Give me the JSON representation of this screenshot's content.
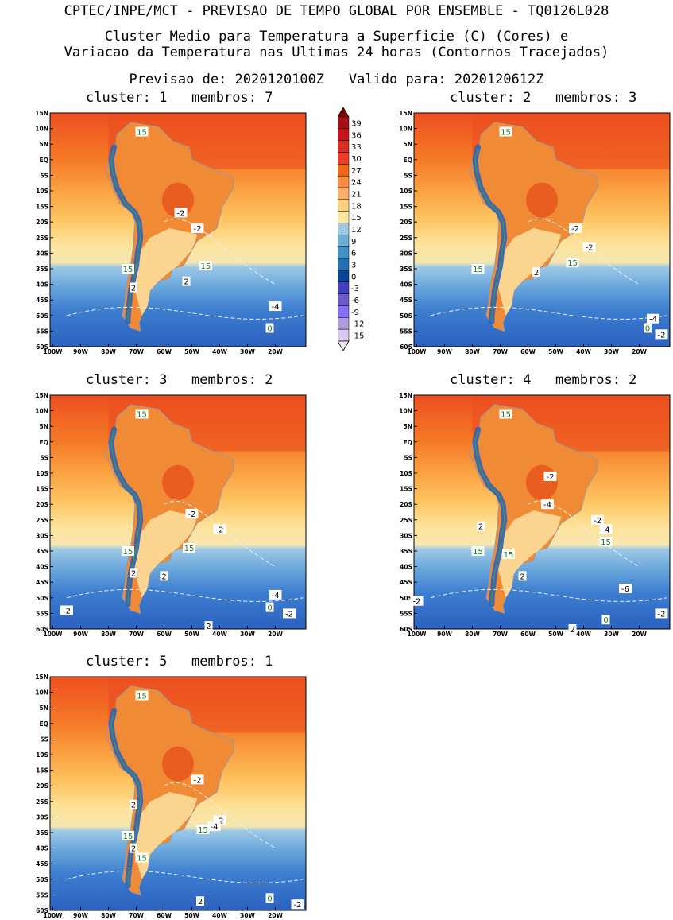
{
  "header": {
    "line1": "CPTEC/INPE/MCT - PREVISAO DE TEMPO GLOBAL POR ENSEMBLE - TQ0126L028",
    "line2": "Cluster Medio para Temperatura a Superficie (C) (Cores) e",
    "line3": "Variacao da Temperatura nas Ultimas 24 horas (Contornos Tracejados)",
    "line4": "Previsao de: 2020120100Z   Valido para: 2020120612Z"
  },
  "axes": {
    "lat_labels": [
      "15N",
      "10N",
      "5N",
      "EQ",
      "5S",
      "10S",
      "15S",
      "20S",
      "25S",
      "30S",
      "35S",
      "40S",
      "45S",
      "50S",
      "55S",
      "60S"
    ],
    "lon_labels": [
      "100W",
      "90W",
      "80W",
      "70W",
      "60W",
      "50W",
      "40W",
      "30W",
      "20W"
    ]
  },
  "colorbar": {
    "labels": [
      "39",
      "36",
      "33",
      "30",
      "27",
      "24",
      "21",
      "18",
      "15",
      "12",
      "9",
      "6",
      "3",
      "0",
      "-3",
      "-6",
      "-9",
      "-12",
      "-15"
    ],
    "colors": [
      "#a50f15",
      "#c4161c",
      "#de2d26",
      "#ef3b2c",
      "#f16913",
      "#fd8d3c",
      "#fdae6b",
      "#fdd27a",
      "#fee8a0",
      "#9ecae1",
      "#6baed6",
      "#4292c6",
      "#2171b5",
      "#084594",
      "#4040c0",
      "#6a5acd",
      "#8470ff",
      "#b19cd9",
      "#d8c8f0"
    ]
  },
  "panels": [
    {
      "title": "cluster: 1   membros: 7",
      "labels": [
        {
          "t": "15",
          "c": "g",
          "x": -68,
          "y": 9
        },
        {
          "t": "-2",
          "c": "w",
          "x": -54,
          "y": -17
        },
        {
          "t": "-2",
          "c": "w",
          "x": -48,
          "y": -22
        },
        {
          "t": "15",
          "c": "g",
          "x": -73,
          "y": -35
        },
        {
          "t": "15",
          "c": "g",
          "x": -45,
          "y": -34
        },
        {
          "t": "2",
          "c": "w",
          "x": -52,
          "y": -39
        },
        {
          "t": "2",
          "c": "w",
          "x": -71,
          "y": -41
        },
        {
          "t": "-4",
          "c": "w",
          "x": -20,
          "y": -47
        },
        {
          "t": "0",
          "c": "g",
          "x": -22,
          "y": -54
        }
      ]
    },
    {
      "title": "cluster: 2   membros: 3",
      "labels": [
        {
          "t": "15",
          "c": "g",
          "x": -68,
          "y": 9
        },
        {
          "t": "-2",
          "c": "w",
          "x": -43,
          "y": -22
        },
        {
          "t": "-2",
          "c": "w",
          "x": -38,
          "y": -28
        },
        {
          "t": "15",
          "c": "g",
          "x": -44,
          "y": -33
        },
        {
          "t": "15",
          "c": "g",
          "x": -78,
          "y": -35
        },
        {
          "t": "2",
          "c": "w",
          "x": -57,
          "y": -36
        },
        {
          "t": "-4",
          "c": "w",
          "x": -15,
          "y": -51
        },
        {
          "t": "0",
          "c": "g",
          "x": -17,
          "y": -54
        },
        {
          "t": "-2",
          "c": "w",
          "x": -12,
          "y": -56
        }
      ]
    },
    {
      "title": "cluster: 3   membros: 2",
      "labels": [
        {
          "t": "15",
          "c": "g",
          "x": -68,
          "y": 9
        },
        {
          "t": "-2",
          "c": "w",
          "x": -50,
          "y": -23
        },
        {
          "t": "-2",
          "c": "w",
          "x": -40,
          "y": -28
        },
        {
          "t": "15",
          "c": "g",
          "x": -51,
          "y": -34
        },
        {
          "t": "15",
          "c": "g",
          "x": -73,
          "y": -35
        },
        {
          "t": "2",
          "c": "w",
          "x": -71,
          "y": -42
        },
        {
          "t": "2",
          "c": "w",
          "x": -60,
          "y": -43
        },
        {
          "t": "-4",
          "c": "w",
          "x": -20,
          "y": -49
        },
        {
          "t": "-2",
          "c": "w",
          "x": -95,
          "y": -54
        },
        {
          "t": "0",
          "c": "g",
          "x": -22,
          "y": -53
        },
        {
          "t": "-2",
          "c": "w",
          "x": -15,
          "y": -55
        },
        {
          "t": "2",
          "c": "w",
          "x": -44,
          "y": -59
        }
      ]
    },
    {
      "title": "cluster: 4   membros: 2",
      "labels": [
        {
          "t": "15",
          "c": "g",
          "x": -68,
          "y": 9
        },
        {
          "t": "-2",
          "c": "w",
          "x": -52,
          "y": -11
        },
        {
          "t": "-4",
          "c": "w",
          "x": -53,
          "y": -20
        },
        {
          "t": "-2",
          "c": "w",
          "x": -35,
          "y": -25
        },
        {
          "t": "-4",
          "c": "w",
          "x": -32,
          "y": -28
        },
        {
          "t": "15",
          "c": "g",
          "x": -32,
          "y": -32
        },
        {
          "t": "2",
          "c": "w",
          "x": -77,
          "y": -27
        },
        {
          "t": "15",
          "c": "g",
          "x": -78,
          "y": -35
        },
        {
          "t": "15",
          "c": "g",
          "x": -67,
          "y": -36
        },
        {
          "t": "2",
          "c": "w",
          "x": -62,
          "y": -43
        },
        {
          "t": "-6",
          "c": "w",
          "x": -25,
          "y": -47
        },
        {
          "t": "-2",
          "c": "w",
          "x": -100,
          "y": -51
        },
        {
          "t": "-2",
          "c": "w",
          "x": -12,
          "y": -55
        },
        {
          "t": "0",
          "c": "g",
          "x": -32,
          "y": -57
        },
        {
          "t": "2",
          "c": "w",
          "x": -44,
          "y": -60
        }
      ]
    },
    {
      "title": "cluster: 5   membros: 1",
      "labels": [
        {
          "t": "15",
          "c": "g",
          "x": -68,
          "y": 9
        },
        {
          "t": "-2",
          "c": "w",
          "x": -48,
          "y": -18
        },
        {
          "t": "2",
          "c": "w",
          "x": -71,
          "y": -26
        },
        {
          "t": "-2",
          "c": "w",
          "x": -40,
          "y": -31
        },
        {
          "t": "-4",
          "c": "w",
          "x": -42,
          "y": -33
        },
        {
          "t": "15",
          "c": "g",
          "x": -46,
          "y": -34
        },
        {
          "t": "15",
          "c": "g",
          "x": -73,
          "y": -36
        },
        {
          "t": "2",
          "c": "w",
          "x": -71,
          "y": -40
        },
        {
          "t": "15",
          "c": "g",
          "x": -68,
          "y": -43
        },
        {
          "t": "2",
          "c": "w",
          "x": -47,
          "y": -57
        },
        {
          "t": "0",
          "c": "g",
          "x": -22,
          "y": -56
        },
        {
          "t": "-2",
          "c": "w",
          "x": -12,
          "y": -58
        }
      ]
    }
  ]
}
